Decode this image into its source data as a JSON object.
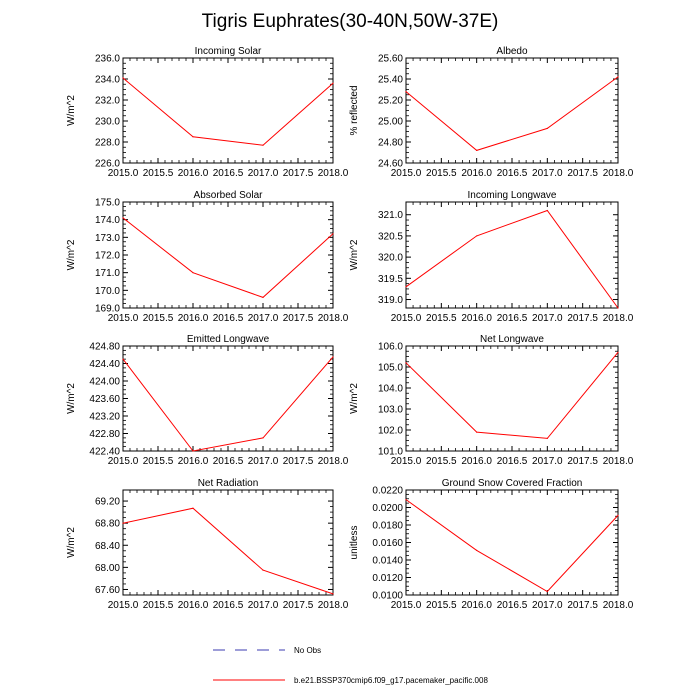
{
  "title": "Tigris Euphrates(30-40N,50W-37E)",
  "legend": {
    "entries": [
      {
        "label": "No Obs",
        "color": "#3b3bb0",
        "style": "dashed"
      },
      {
        "label": "b.e21.BSSP370cmip6.f09_g17.pacemaker_pacific.008",
        "color": "#ff0000",
        "style": "solid"
      }
    ]
  },
  "chart_data": [
    {
      "type": "line",
      "title": "Incoming Solar",
      "ylabel": "W/m^2",
      "x": [
        2015,
        2016,
        2017,
        2018
      ],
      "values": [
        234.1,
        228.5,
        227.7,
        233.6
      ],
      "xlim": [
        2015,
        2018
      ],
      "ylim": [
        226,
        236
      ],
      "xticks": [
        "2015.0",
        "2015.5",
        "2016.0",
        "2016.5",
        "2017.0",
        "2017.5",
        "2018.0"
      ],
      "yticks": [
        "226.0",
        "228.0",
        "230.0",
        "232.0",
        "234.0",
        "236.0"
      ],
      "ytick_values": [
        226,
        228,
        230,
        232,
        234,
        236
      ]
    },
    {
      "type": "line",
      "title": "Albedo",
      "ylabel": "% reflected",
      "x": [
        2015,
        2016,
        2017,
        2018
      ],
      "values": [
        25.28,
        24.72,
        24.93,
        25.42
      ],
      "xlim": [
        2015,
        2018
      ],
      "ylim": [
        24.6,
        25.6
      ],
      "xticks": [
        "2015.0",
        "2015.5",
        "2016.0",
        "2016.5",
        "2017.0",
        "2017.5",
        "2018.0"
      ],
      "yticks": [
        "24.60",
        "24.80",
        "25.00",
        "25.20",
        "25.40",
        "25.60"
      ],
      "ytick_values": [
        24.6,
        24.8,
        25.0,
        25.2,
        25.4,
        25.6
      ]
    },
    {
      "type": "line",
      "title": "Absorbed Solar",
      "ylabel": "W/m^2",
      "x": [
        2015,
        2016,
        2017,
        2018
      ],
      "values": [
        174.1,
        171.0,
        169.6,
        173.2
      ],
      "xlim": [
        2015,
        2018
      ],
      "ylim": [
        169,
        175
      ],
      "xticks": [
        "2015.0",
        "2015.5",
        "2016.0",
        "2016.5",
        "2017.0",
        "2017.5",
        "2018.0"
      ],
      "yticks": [
        "169.0",
        "170.0",
        "171.0",
        "172.0",
        "173.0",
        "174.0",
        "175.0"
      ],
      "ytick_values": [
        169,
        170,
        171,
        172,
        173,
        174,
        175
      ]
    },
    {
      "type": "line",
      "title": "Incoming Longwave",
      "ylabel": "W/m^2",
      "x": [
        2015,
        2016,
        2017,
        2018
      ],
      "values": [
        319.3,
        320.5,
        321.1,
        318.8
      ],
      "xlim": [
        2015,
        2018
      ],
      "ylim": [
        318.8,
        321.3
      ],
      "xticks": [
        "2015.0",
        "2015.5",
        "2016.0",
        "2016.5",
        "2017.0",
        "2017.5",
        "2018.0"
      ],
      "yticks": [
        "319.0",
        "319.5",
        "320.0",
        "320.5",
        "321.0"
      ],
      "ytick_values": [
        319,
        319.5,
        320,
        320.5,
        321
      ]
    },
    {
      "type": "line",
      "title": "Emitted Longwave",
      "ylabel": "W/m^2",
      "x": [
        2015,
        2016,
        2017,
        2018
      ],
      "values": [
        424.5,
        422.4,
        422.7,
        424.55
      ],
      "xlim": [
        2015,
        2018
      ],
      "ylim": [
        422.4,
        424.8
      ],
      "xticks": [
        "2015.0",
        "2015.5",
        "2016.0",
        "2016.5",
        "2017.0",
        "2017.5",
        "2018.0"
      ],
      "yticks": [
        "422.40",
        "422.80",
        "423.20",
        "423.60",
        "424.00",
        "424.40",
        "424.80"
      ],
      "ytick_values": [
        422.4,
        422.8,
        423.2,
        423.6,
        424.0,
        424.4,
        424.8
      ]
    },
    {
      "type": "line",
      "title": "Net Longwave",
      "ylabel": "W/m^2",
      "x": [
        2015,
        2016,
        2017,
        2018
      ],
      "values": [
        105.2,
        101.9,
        101.6,
        105.7
      ],
      "xlim": [
        2015,
        2018
      ],
      "ylim": [
        101,
        106
      ],
      "xticks": [
        "2015.0",
        "2015.5",
        "2016.0",
        "2016.5",
        "2017.0",
        "2017.5",
        "2018.0"
      ],
      "yticks": [
        "101.0",
        "102.0",
        "103.0",
        "104.0",
        "105.0",
        "106.0"
      ],
      "ytick_values": [
        101,
        102,
        103,
        104,
        105,
        106
      ]
    },
    {
      "type": "line",
      "title": "Net Radiation",
      "ylabel": "W/m^2",
      "x": [
        2015,
        2016,
        2017,
        2018
      ],
      "values": [
        68.8,
        69.07,
        67.95,
        67.52
      ],
      "xlim": [
        2015,
        2018
      ],
      "ylim": [
        67.5,
        69.4
      ],
      "xticks": [
        "2015.0",
        "2015.5",
        "2016.0",
        "2016.5",
        "2017.0",
        "2017.5",
        "2018.0"
      ],
      "yticks": [
        "67.60",
        "68.00",
        "68.40",
        "68.80",
        "69.20"
      ],
      "ytick_values": [
        67.6,
        68.0,
        68.4,
        68.8,
        69.2
      ]
    },
    {
      "type": "line",
      "title": "Ground Snow Covered Fraction",
      "ylabel": "unitless",
      "x": [
        2015,
        2016,
        2017,
        2018
      ],
      "values": [
        0.0209,
        0.0151,
        0.0104,
        0.0191
      ],
      "xlim": [
        2015,
        2018
      ],
      "ylim": [
        0.01,
        0.022
      ],
      "xticks": [
        "2015.0",
        "2015.5",
        "2016.0",
        "2016.5",
        "2017.0",
        "2017.5",
        "2018.0"
      ],
      "yticks": [
        "0.0100",
        "0.0120",
        "0.0140",
        "0.0160",
        "0.0180",
        "0.0200",
        "0.0220"
      ],
      "ytick_values": [
        0.01,
        0.012,
        0.014,
        0.016,
        0.018,
        0.02,
        0.022
      ]
    }
  ]
}
